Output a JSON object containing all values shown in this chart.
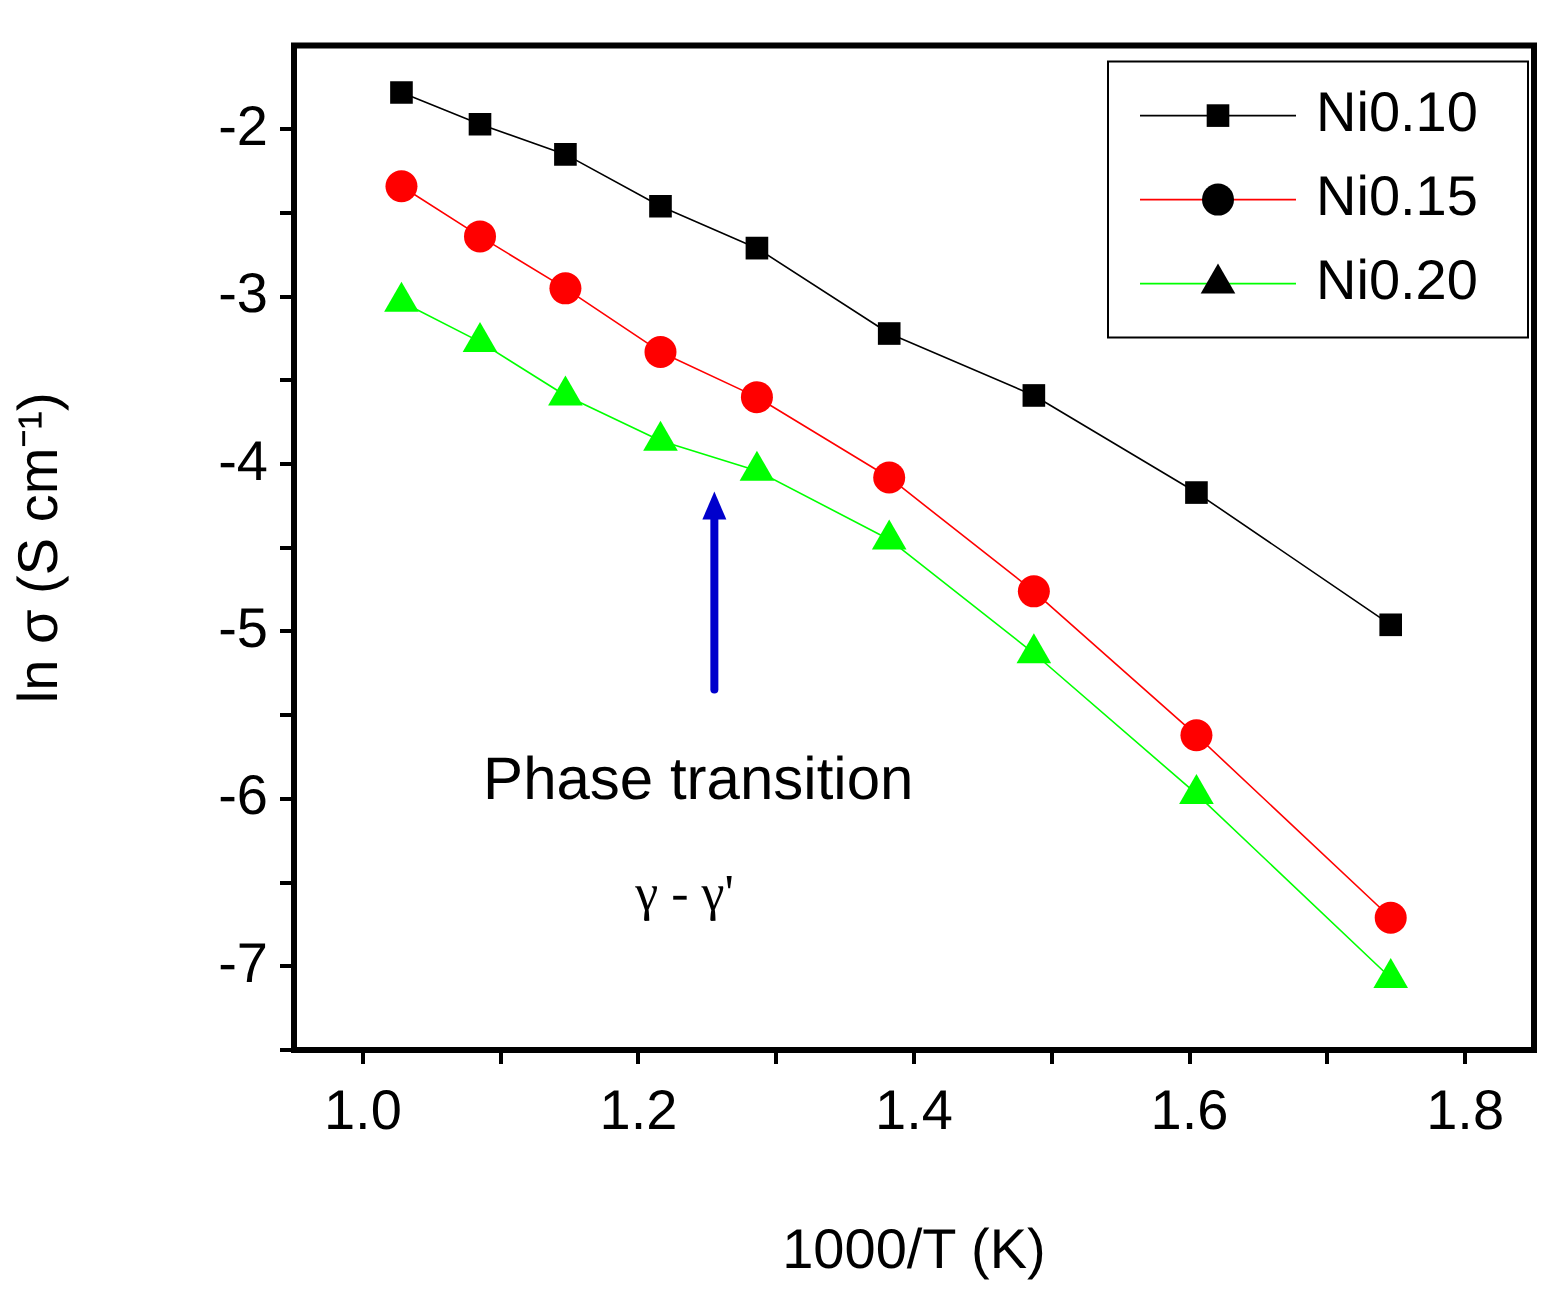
{
  "chart_data": {
    "type": "line",
    "xlabel": "1000/T (K)",
    "ylabel": "ln σ (S cm⁻¹)",
    "xlim": [
      0.95,
      1.85
    ],
    "ylim": [
      -7.5,
      -1.5
    ],
    "xticks": [
      {
        "value": 1.0,
        "label": "1.0"
      },
      {
        "value": 1.1,
        "label": null
      },
      {
        "value": 1.2,
        "label": "1.2"
      },
      {
        "value": 1.3,
        "label": null
      },
      {
        "value": 1.4,
        "label": "1.4"
      },
      {
        "value": 1.5,
        "label": null
      },
      {
        "value": 1.6,
        "label": "1.6"
      },
      {
        "value": 1.7,
        "label": null
      },
      {
        "value": 1.8,
        "label": "1.8"
      }
    ],
    "yticks": [
      {
        "value": -7.5,
        "label": null
      },
      -7,
      {
        "value": -6.5,
        "label": null
      },
      -6,
      {
        "value": -5.5,
        "label": null
      },
      -5,
      {
        "value": -4.5,
        "label": null
      },
      -4,
      {
        "value": -3.5,
        "label": null
      },
      -3,
      {
        "value": -2.5,
        "label": null
      },
      -2
    ],
    "x": [
      1.028,
      1.085,
      1.147,
      1.216,
      1.286,
      1.382,
      1.487,
      1.605,
      1.746
    ],
    "series": [
      {
        "name": "Ni0.10",
        "color": "#000000",
        "marker": "square",
        "values": [
          -1.78,
          -1.97,
          -2.15,
          -2.46,
          -2.71,
          -3.22,
          -3.59,
          -4.17,
          -4.96
        ]
      },
      {
        "name": "Ni0.15",
        "color": "#ff0000",
        "marker": "circle",
        "values": [
          -2.34,
          -2.64,
          -2.95,
          -3.33,
          -3.6,
          -4.08,
          -4.76,
          -5.62,
          -6.71
        ]
      },
      {
        "name": "Ni0.20",
        "color": "#00ff00",
        "marker": "triangle",
        "values": [
          -3.03,
          -3.27,
          -3.59,
          -3.86,
          -4.04,
          -4.45,
          -5.13,
          -5.97,
          -7.07
        ]
      }
    ],
    "annotations": [
      "Phase transition",
      "γ - γ'"
    ],
    "grid": false,
    "legend": "top right",
    "line_style": "solid"
  }
}
